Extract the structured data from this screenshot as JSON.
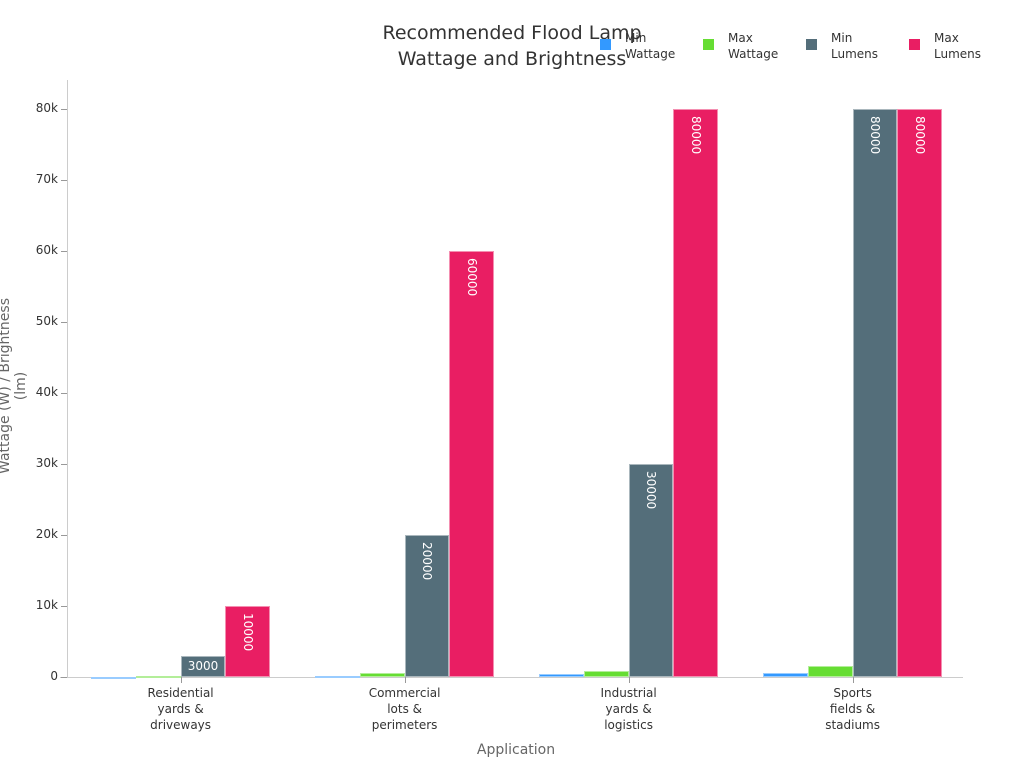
{
  "chart_data": {
    "type": "bar",
    "title": "Recommended Flood Lamp Wattage and Brightness",
    "title_lines": [
      "Recommended Flood Lamp",
      "Wattage and Brightness"
    ],
    "xlabel": "Application",
    "ylabel": "Wattage (W) / Brightness (lm)",
    "ylim": [
      0,
      84000
    ],
    "yticks": [
      "0",
      "10k",
      "20k",
      "30k",
      "40k",
      "50k",
      "60k",
      "70k",
      "80k"
    ],
    "ytick_values": [
      0,
      10000,
      20000,
      30000,
      40000,
      50000,
      60000,
      70000,
      80000
    ],
    "grid": false,
    "legend_position": "top-right",
    "categories": [
      [
        "Residential",
        "yards &",
        "driveways"
      ],
      [
        "Commercial",
        "lots &",
        "perimeters"
      ],
      [
        "Industrial",
        "yards &",
        "logistics"
      ],
      [
        "Sports",
        "fields &",
        "stadiums"
      ]
    ],
    "series": [
      {
        "name": "Min Wattage",
        "legend": [
          "Min",
          "Wattage"
        ],
        "color": "#3399ff",
        "values": [
          50,
          200,
          400,
          500
        ]
      },
      {
        "name": "Max Wattage",
        "legend": [
          "Max",
          "Wattage"
        ],
        "color": "#66dd33",
        "values": [
          150,
          500,
          900,
          1500
        ]
      },
      {
        "name": "Min Lumens",
        "legend": [
          "Min",
          "Lumens"
        ],
        "color": "#546e7a",
        "values": [
          3000,
          20000,
          30000,
          80000
        ]
      },
      {
        "name": "Max Lumens",
        "legend": [
          "Max",
          "Lumens"
        ],
        "color": "#e91e63",
        "values": [
          10000,
          60000,
          80000,
          80000
        ]
      }
    ]
  }
}
